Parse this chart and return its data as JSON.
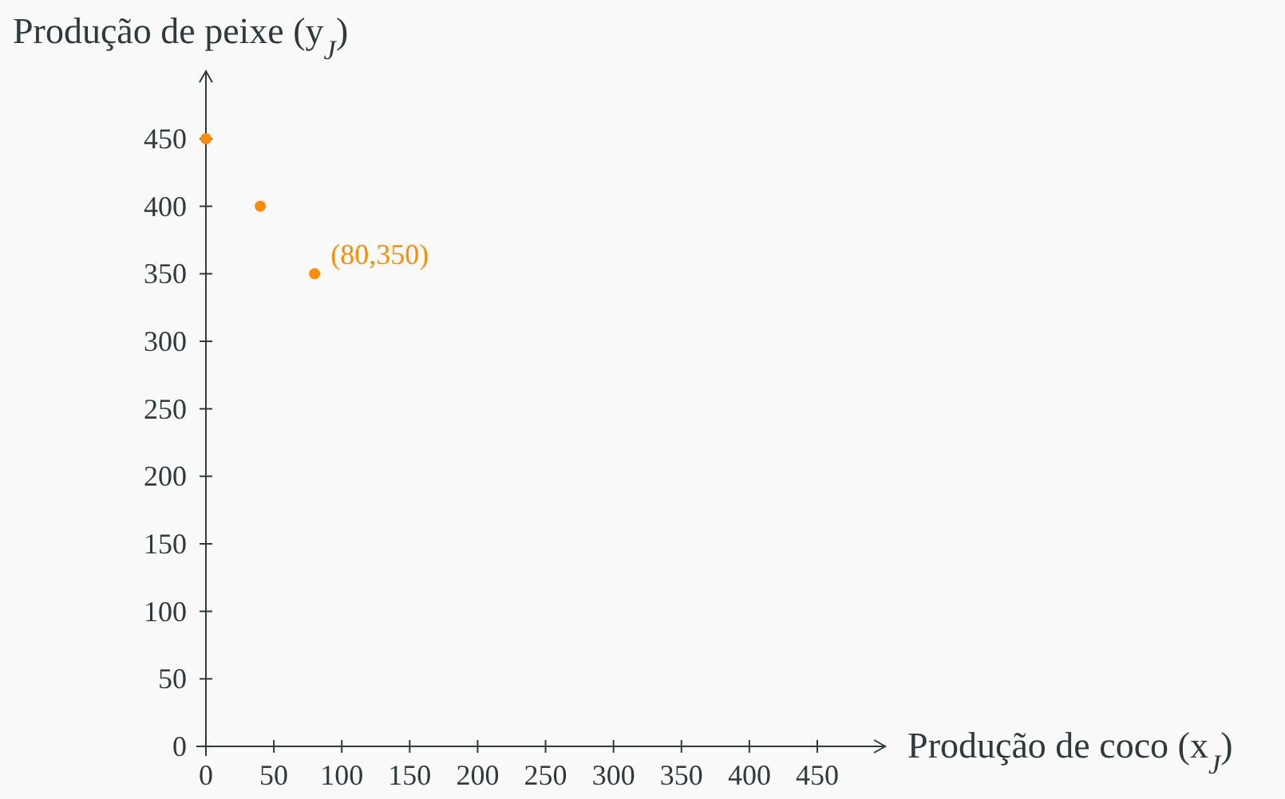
{
  "chart_data": {
    "type": "scatter",
    "xlabel": "Produção de coco (x$_{J}$)",
    "ylabel": "Produção de peixe (y$_{J}$)",
    "x": [
      0,
      40,
      80
    ],
    "series": [
      {
        "color": "#ff8c00",
        "values": [
          450,
          400,
          350
        ]
      }
    ],
    "xlim": [
      0,
      500
    ],
    "ylim": [
      0,
      500
    ],
    "xticks": [
      0,
      50,
      100,
      150,
      200,
      250,
      300,
      350,
      400,
      450
    ],
    "yticks": [
      0,
      50,
      100,
      150,
      200,
      250,
      300,
      350,
      400,
      450
    ],
    "annotations": [
      {
        "text": "(80,350)",
        "x": 80,
        "y": 350
      }
    ],
    "marker": "circle",
    "grid": false
  }
}
